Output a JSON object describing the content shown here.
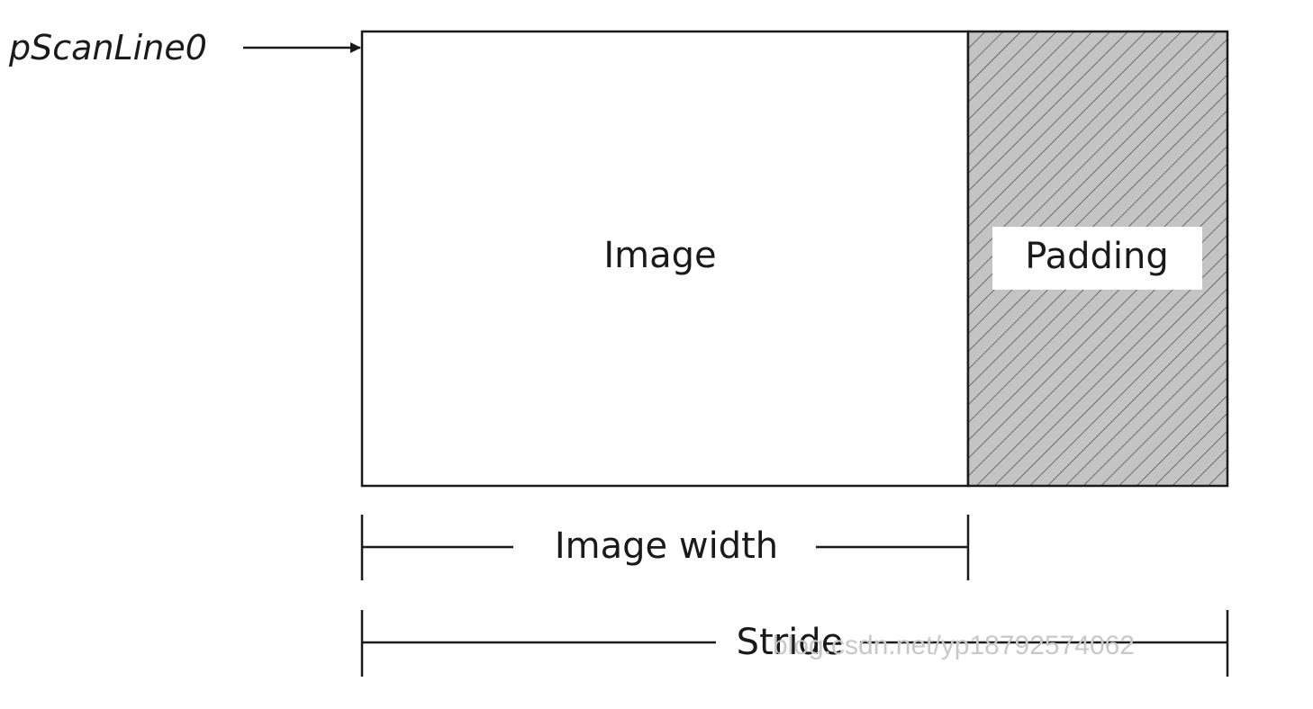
{
  "diagram": {
    "pointer_label": "pScanLine0",
    "image_label": "Image",
    "padding_label": "Padding",
    "image_width_label": "Image width",
    "stride_label": "Stride",
    "watermark": "blog.csdn.net/yp18792574062"
  },
  "colors": {
    "stroke": "#1a1a1a",
    "padding_fill": "#c4c4c4",
    "hatch": "#555555",
    "background": "#ffffff",
    "watermark": "#c8c8c8"
  }
}
